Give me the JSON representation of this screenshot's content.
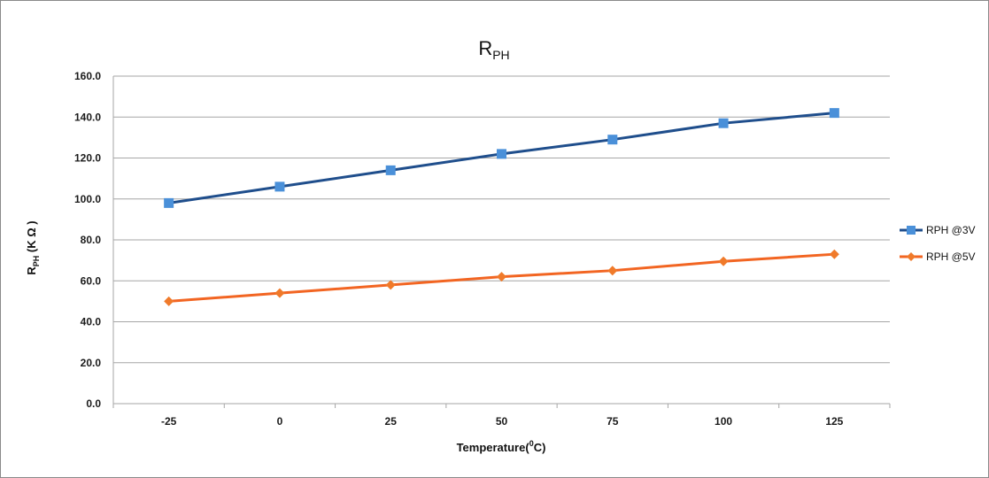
{
  "chart_data": {
    "type": "line",
    "title": "R",
    "title_sub": "PH",
    "xlabel": "Temperature(",
    "xlabel_sup": "0",
    "xlabel_tail": "C)",
    "ylabel": "R",
    "ylabel_sub": "PH",
    "ylabel_tail": " (K Ω )",
    "categories": [
      "-25",
      "0",
      "25",
      "50",
      "75",
      "100",
      "125"
    ],
    "y_ticks": [
      "0.0",
      "20.0",
      "40.0",
      "60.0",
      "80.0",
      "100.0",
      "120.0",
      "140.0",
      "160.0"
    ],
    "ylim": [
      0,
      160
    ],
    "grid": true,
    "legend_position": "right",
    "series": [
      {
        "name": "RPH @3V",
        "color": "#1f4e8c",
        "marker_color": "#4a90d9",
        "marker": "square",
        "values": [
          98,
          106,
          114,
          122,
          129,
          137,
          142
        ]
      },
      {
        "name": "RPH @5V",
        "color": "#f26522",
        "marker_color": "#f07a2a",
        "marker": "diamond",
        "values": [
          50,
          54,
          58,
          62,
          65,
          69.5,
          73
        ]
      }
    ]
  }
}
